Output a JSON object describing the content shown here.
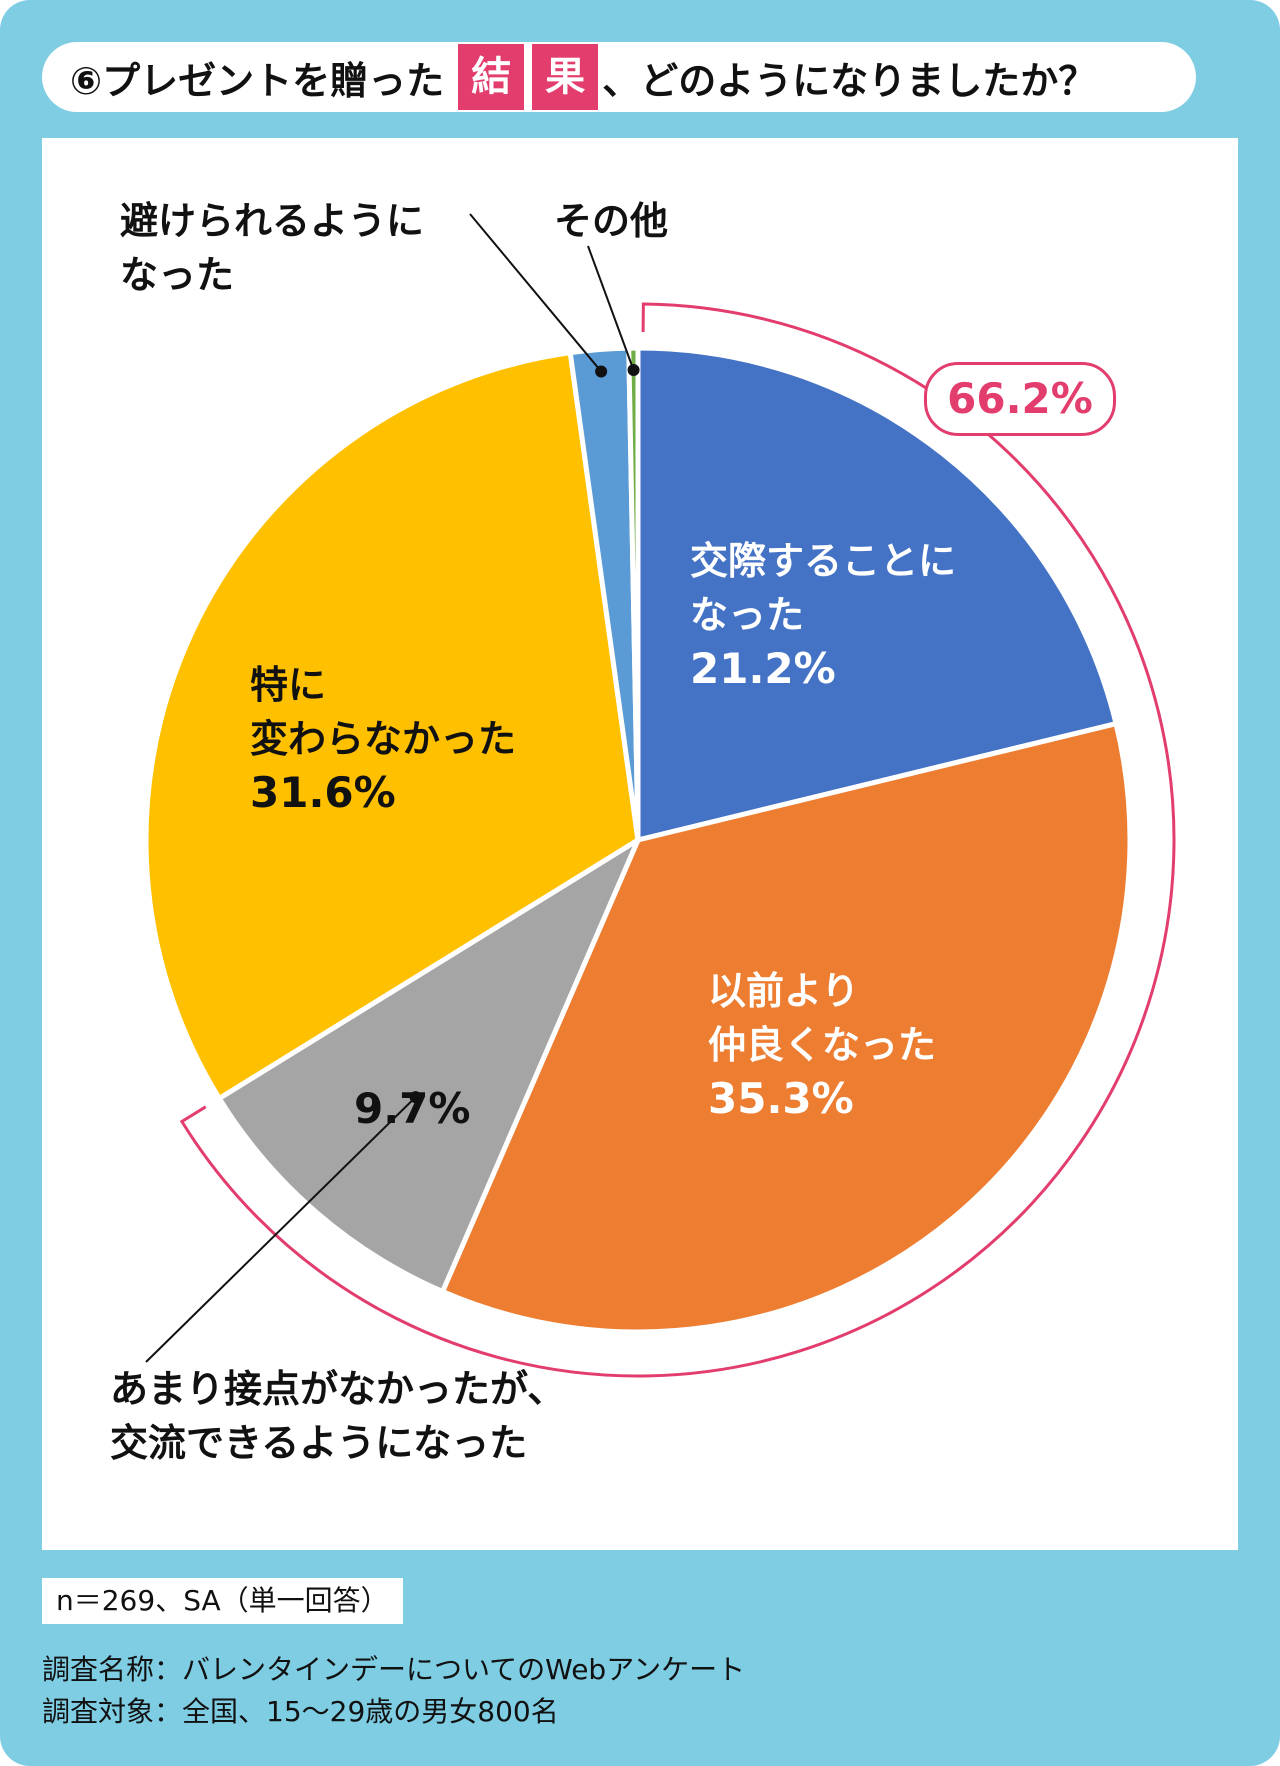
{
  "header": {
    "title_prefix": "⑥プレゼントを贈った",
    "title_highlight_1": "結",
    "title_highlight_2": "果",
    "title_suffix": "、どのようになりましたか？",
    "accent_color": "#e23d6d",
    "frame_color": "#7fcde3"
  },
  "chart_data": {
    "type": "pie",
    "unit": "%",
    "start": "12 o'clock, clockwise",
    "slices": [
      {
        "label": "交際することになった",
        "value": 21.2,
        "value_text": "21.2%",
        "color": "#4472c4"
      },
      {
        "label": "以前より仲良くなった",
        "value": 35.3,
        "value_text": "35.3%",
        "color": "#ed7d31"
      },
      {
        "label": "あまり接点がなかったが、交流できるようになった",
        "value": 9.7,
        "value_text": "9.7%",
        "color": "#a5a5a5"
      },
      {
        "label": "特に変わらなかった",
        "value": 31.6,
        "value_text": "31.6%",
        "color": "#ffc000"
      },
      {
        "label": "避けられるようになった",
        "value": 1.9,
        "color": "#5b9bd5"
      },
      {
        "label": "その他",
        "value": 0.3,
        "color": "#70ad47"
      }
    ],
    "bracket": {
      "label": "66.2%",
      "covers": [
        "交際することになった",
        "以前より仲良くなった",
        "あまり接点がなかったが、交流できるようになった"
      ],
      "color": "#e23d6d"
    }
  },
  "labels": {
    "dating_line1": "交際することに",
    "dating_line2": "なった",
    "closer_line1": "以前より",
    "closer_line2": "仲良くなった",
    "nochange_line1": "特に",
    "nochange_line2": "変わらなかった",
    "interaction_line1": "あまり接点がなかったが、",
    "interaction_line2": "交流できるようになった",
    "avoided_line1": "避けられるように",
    "avoided_line2": "なった",
    "other": "その他"
  },
  "footer": {
    "sample": "n＝269、SA（単一回答）",
    "survey_name": "調査名称：バレンタインデーについてのWebアンケート",
    "survey_target": "調査対象：全国、15～29歳の男女800名"
  }
}
